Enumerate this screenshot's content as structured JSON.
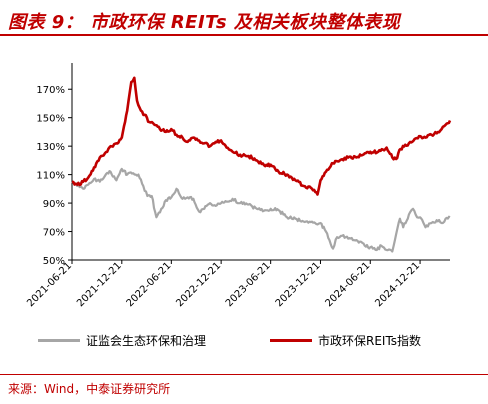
{
  "title": "图表 9： 市政环保 REITs 及相关板块整体表现",
  "source": "来源：Wind，中泰证券研究所",
  "colors": {
    "title": "#c00000",
    "series_red": "#c00000",
    "series_gray": "#a6a6a6"
  },
  "chart_data": {
    "type": "line",
    "title": "",
    "xlabel": "",
    "ylabel": "",
    "grid": false,
    "legend_position": "bottom",
    "ylim": [
      0.5,
      1.8
    ],
    "yticks": [
      0.5,
      0.7,
      0.9,
      1.1,
      1.3,
      1.5,
      1.7
    ],
    "ytick_labels": [
      "50%",
      "70%",
      "90%",
      "110%",
      "130%",
      "150%",
      "170%"
    ],
    "xlim": [
      "2021-06-21",
      "2025-04-10"
    ],
    "xticks": [
      "2021-06-21",
      "2021-12-21",
      "2022-06-21",
      "2022-12-21",
      "2023-06-21",
      "2023-12-21",
      "2024-06-21",
      "2024-12-21"
    ],
    "series": [
      {
        "name": "证监会生态环保和治理",
        "color": "#a6a6a6",
        "points": [
          [
            "2021-06-21",
            1.05
          ],
          [
            "2021-07-10",
            1.02
          ],
          [
            "2021-08-01",
            1.0
          ],
          [
            "2021-08-20",
            1.03
          ],
          [
            "2021-09-10",
            1.07
          ],
          [
            "2021-10-01",
            1.05
          ],
          [
            "2021-10-20",
            1.09
          ],
          [
            "2021-11-10",
            1.12
          ],
          [
            "2021-12-01",
            1.06
          ],
          [
            "2021-12-21",
            1.14
          ],
          [
            "2022-01-10",
            1.1
          ],
          [
            "2022-02-01",
            1.11
          ],
          [
            "2022-02-20",
            1.1
          ],
          [
            "2022-03-10",
            1.02
          ],
          [
            "2022-03-25",
            0.95
          ],
          [
            "2022-04-10",
            0.95
          ],
          [
            "2022-04-27",
            0.8
          ],
          [
            "2022-05-15",
            0.86
          ],
          [
            "2022-06-01",
            0.92
          ],
          [
            "2022-06-21",
            0.94
          ],
          [
            "2022-07-10",
            1.0
          ],
          [
            "2022-08-01",
            0.93
          ],
          [
            "2022-08-20",
            0.94
          ],
          [
            "2022-09-10",
            0.93
          ],
          [
            "2022-10-01",
            0.84
          ],
          [
            "2022-10-20",
            0.86
          ],
          [
            "2022-11-10",
            0.9
          ],
          [
            "2022-12-01",
            0.88
          ],
          [
            "2022-12-21",
            0.9
          ],
          [
            "2023-01-10",
            0.91
          ],
          [
            "2023-02-01",
            0.93
          ],
          [
            "2023-03-01",
            0.9
          ],
          [
            "2023-04-01",
            0.89
          ],
          [
            "2023-05-01",
            0.86
          ],
          [
            "2023-06-01",
            0.85
          ],
          [
            "2023-06-21",
            0.86
          ],
          [
            "2023-07-20",
            0.85
          ],
          [
            "2023-08-20",
            0.8
          ],
          [
            "2023-09-20",
            0.79
          ],
          [
            "2023-10-20",
            0.77
          ],
          [
            "2023-11-20",
            0.77
          ],
          [
            "2023-12-10",
            0.75
          ],
          [
            "2023-12-21",
            0.76
          ],
          [
            "2024-01-10",
            0.7
          ],
          [
            "2024-02-05",
            0.58
          ],
          [
            "2024-02-20",
            0.66
          ],
          [
            "2024-03-10",
            0.67
          ],
          [
            "2024-04-01",
            0.65
          ],
          [
            "2024-05-01",
            0.64
          ],
          [
            "2024-06-01",
            0.6
          ],
          [
            "2024-06-21",
            0.59
          ],
          [
            "2024-07-15",
            0.57
          ],
          [
            "2024-08-01",
            0.6
          ],
          [
            "2024-08-20",
            0.57
          ],
          [
            "2024-09-10",
            0.56
          ],
          [
            "2024-09-24",
            0.68
          ],
          [
            "2024-10-08",
            0.79
          ],
          [
            "2024-10-20",
            0.73
          ],
          [
            "2024-11-10",
            0.82
          ],
          [
            "2024-11-25",
            0.86
          ],
          [
            "2024-12-10",
            0.8
          ],
          [
            "2024-12-21",
            0.8
          ],
          [
            "2025-01-10",
            0.73
          ],
          [
            "2025-02-01",
            0.76
          ],
          [
            "2025-02-20",
            0.78
          ],
          [
            "2025-03-10",
            0.76
          ],
          [
            "2025-03-25",
            0.79
          ],
          [
            "2025-04-10",
            0.8
          ]
        ]
      },
      {
        "name": "市政环保REITs指数",
        "color": "#c00000",
        "points": [
          [
            "2021-06-21",
            1.05
          ],
          [
            "2021-07-10",
            1.03
          ],
          [
            "2021-08-01",
            1.05
          ],
          [
            "2021-08-20",
            1.08
          ],
          [
            "2021-09-10",
            1.15
          ],
          [
            "2021-10-01",
            1.22
          ],
          [
            "2021-10-20",
            1.25
          ],
          [
            "2021-11-10",
            1.3
          ],
          [
            "2021-12-01",
            1.32
          ],
          [
            "2021-12-21",
            1.36
          ],
          [
            "2022-01-10",
            1.55
          ],
          [
            "2022-01-25",
            1.75
          ],
          [
            "2022-02-05",
            1.78
          ],
          [
            "2022-02-15",
            1.62
          ],
          [
            "2022-03-01",
            1.55
          ],
          [
            "2022-03-15",
            1.52
          ],
          [
            "2022-04-01",
            1.47
          ],
          [
            "2022-04-20",
            1.45
          ],
          [
            "2022-05-10",
            1.42
          ],
          [
            "2022-06-01",
            1.4
          ],
          [
            "2022-06-21",
            1.42
          ],
          [
            "2022-07-10",
            1.38
          ],
          [
            "2022-08-01",
            1.36
          ],
          [
            "2022-08-20",
            1.33
          ],
          [
            "2022-09-10",
            1.36
          ],
          [
            "2022-10-01",
            1.34
          ],
          [
            "2022-10-20",
            1.32
          ],
          [
            "2022-11-10",
            1.3
          ],
          [
            "2022-12-01",
            1.33
          ],
          [
            "2022-12-21",
            1.34
          ],
          [
            "2023-01-10",
            1.29
          ],
          [
            "2023-02-01",
            1.26
          ],
          [
            "2023-03-01",
            1.24
          ],
          [
            "2023-04-01",
            1.23
          ],
          [
            "2023-05-01",
            1.2
          ],
          [
            "2023-06-01",
            1.16
          ],
          [
            "2023-06-21",
            1.17
          ],
          [
            "2023-07-20",
            1.12
          ],
          [
            "2023-08-20",
            1.1
          ],
          [
            "2023-09-20",
            1.06
          ],
          [
            "2023-10-20",
            1.02
          ],
          [
            "2023-11-20",
            1.0
          ],
          [
            "2023-12-10",
            0.96
          ],
          [
            "2023-12-21",
            1.06
          ],
          [
            "2024-01-10",
            1.12
          ],
          [
            "2024-02-01",
            1.18
          ],
          [
            "2024-03-01",
            1.2
          ],
          [
            "2024-04-01",
            1.22
          ],
          [
            "2024-05-01",
            1.22
          ],
          [
            "2024-06-01",
            1.25
          ],
          [
            "2024-06-21",
            1.26
          ],
          [
            "2024-07-20",
            1.26
          ],
          [
            "2024-08-20",
            1.29
          ],
          [
            "2024-09-10",
            1.22
          ],
          [
            "2024-09-24",
            1.21
          ],
          [
            "2024-10-10",
            1.28
          ],
          [
            "2024-11-10",
            1.32
          ],
          [
            "2024-12-01",
            1.35
          ],
          [
            "2024-12-21",
            1.37
          ],
          [
            "2025-01-10",
            1.36
          ],
          [
            "2025-02-01",
            1.38
          ],
          [
            "2025-02-20",
            1.39
          ],
          [
            "2025-03-10",
            1.42
          ],
          [
            "2025-03-25",
            1.45
          ],
          [
            "2025-04-10",
            1.48
          ]
        ]
      }
    ]
  }
}
